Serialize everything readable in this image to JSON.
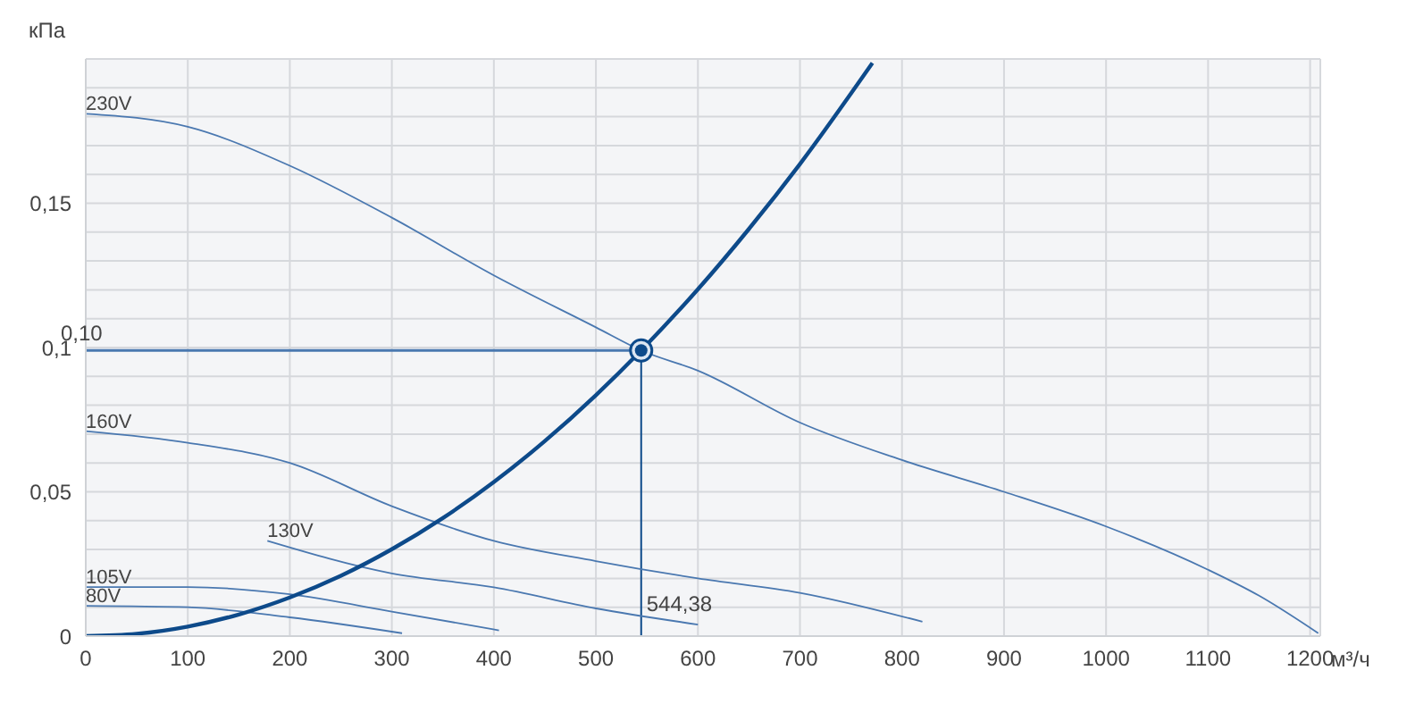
{
  "chart_data": {
    "type": "line",
    "xlabel": "м³/ч",
    "ylabel": "кПа",
    "xlim": [
      0,
      1210
    ],
    "ylim": [
      0,
      0.2
    ],
    "xticks": [
      0,
      100,
      200,
      300,
      400,
      500,
      600,
      700,
      800,
      900,
      1000,
      1100,
      1200
    ],
    "yticks": [
      0,
      {
        "value": 0.01,
        "label": null
      },
      {
        "value": 0.02,
        "label": null
      },
      {
        "value": 0.03,
        "label": null
      },
      {
        "value": 0.04,
        "label": null
      },
      {
        "value": 0.05,
        "label": "0,05"
      },
      {
        "value": 0.06,
        "label": null
      },
      {
        "value": 0.07,
        "label": null
      },
      {
        "value": 0.08,
        "label": null
      },
      {
        "value": 0.09,
        "label": null
      },
      {
        "value": 0.1,
        "label": "0,1"
      },
      {
        "value": 0.11,
        "label": null
      },
      {
        "value": 0.12,
        "label": null
      },
      {
        "value": 0.13,
        "label": null
      },
      {
        "value": 0.14,
        "label": null
      },
      {
        "value": 0.15,
        "label": "0,15"
      },
      {
        "value": 0.16,
        "label": null
      },
      {
        "value": 0.17,
        "label": null
      },
      {
        "value": 0.18,
        "label": null
      },
      {
        "value": 0.19,
        "label": null
      },
      {
        "value": 0.2,
        "label": null
      }
    ],
    "grid": true,
    "legend": false,
    "marker": "none",
    "line_style": "solid",
    "series": [
      {
        "name": "230V",
        "color": "#4a78b0",
        "x": [
          0,
          100,
          200,
          300,
          400,
          500,
          544.38,
          600,
          700,
          800,
          900,
          1000,
          1100,
          1150,
          1208
        ],
        "values": [
          0.181,
          0.1765,
          0.163,
          0.145,
          0.125,
          0.107,
          0.099,
          0.092,
          0.074,
          0.061,
          0.05,
          0.038,
          0.023,
          0.014,
          0.001
        ]
      },
      {
        "name": "160V",
        "color": "#4a78b0",
        "x": [
          0,
          100,
          200,
          300,
          400,
          500,
          600,
          700,
          820
        ],
        "values": [
          0.071,
          0.067,
          0.06,
          0.045,
          0.033,
          0.026,
          0.02,
          0.015,
          0.005
        ]
      },
      {
        "name": "130V",
        "color": "#4a78b0",
        "x": [
          178,
          300,
          400,
          500,
          600
        ],
        "values": [
          0.033,
          0.0217,
          0.0169,
          0.0096,
          0.004
        ]
      },
      {
        "name": "105V",
        "color": "#4a78b0",
        "x": [
          0,
          100,
          200,
          300,
          405
        ],
        "values": [
          0.017,
          0.017,
          0.0145,
          0.0085,
          0.002
        ]
      },
      {
        "name": "80V",
        "color": "#4a78b0",
        "x": [
          0,
          100,
          200,
          310
        ],
        "values": [
          0.0105,
          0.01,
          0.0065,
          0.001
        ]
      },
      {
        "color": "#0d4a8a",
        "x": [
          0,
          50,
          100,
          150,
          200,
          250,
          300,
          350,
          400,
          450,
          500,
          544.38,
          600,
          650,
          700,
          771
        ],
        "values": [
          0,
          0.0008,
          0.0033,
          0.0075,
          0.0134,
          0.0209,
          0.0301,
          0.0409,
          0.0534,
          0.0676,
          0.0835,
          0.099,
          0.1202,
          0.1411,
          0.1636,
          0.1986
        ]
      },
      {
        "type": "scatter",
        "marker": "circle",
        "color": "#0d4a8a",
        "x": [
          544.38
        ],
        "values": [
          0.099
        ]
      }
    ],
    "ref_lines": [
      {
        "axis": "y",
        "value": 0.099,
        "label": "0,10",
        "color": "#4a78b0"
      },
      {
        "axis": "x",
        "value": 544.38,
        "label": "544,38",
        "color": "#0d4a8a"
      }
    ]
  }
}
